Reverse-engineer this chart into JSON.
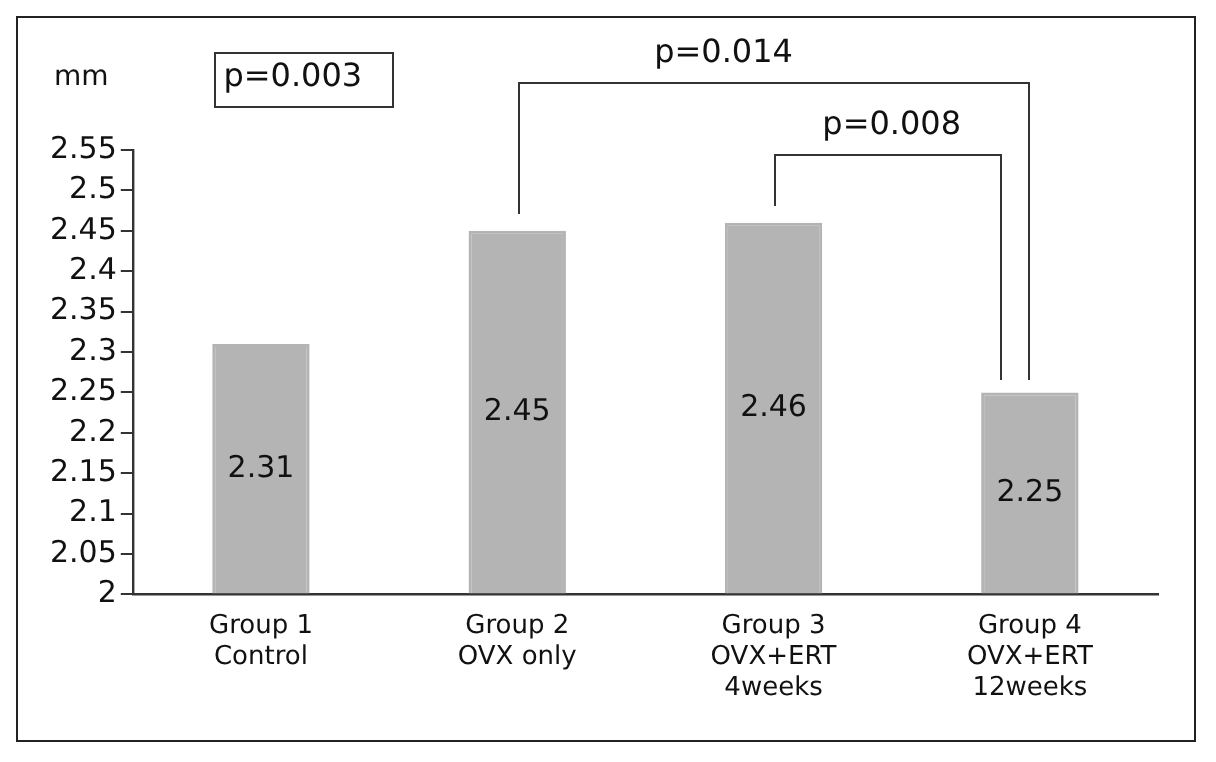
{
  "chart_data": {
    "type": "bar",
    "ylabel": "mm",
    "categories": [
      "Group 1\nControl",
      "Group 2\nOVX only",
      "Group 3\nOVX+ERT\n4weeks",
      "Group 4\nOVX+ERT\n12weeks"
    ],
    "values": [
      2.31,
      2.45,
      2.46,
      2.25
    ],
    "color": "#b4b4b4",
    "ylim": [
      2,
      2.55
    ],
    "yticks": [
      2,
      2.05,
      2.1,
      2.15,
      2.2,
      2.25,
      2.3,
      2.35,
      2.4,
      2.45,
      2.5,
      2.55
    ],
    "grid": false,
    "legend": false,
    "data_labels": true,
    "annotations": [
      "p=0.003",
      "p=0.014",
      "p=0.008"
    ]
  }
}
